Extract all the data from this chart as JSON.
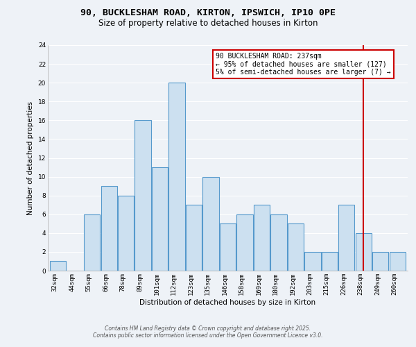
{
  "title_line1": "90, BUCKLESHAM ROAD, KIRTON, IPSWICH, IP10 0PE",
  "title_line2": "Size of property relative to detached houses in Kirton",
  "xlabel": "Distribution of detached houses by size in Kirton",
  "ylabel": "Number of detached properties",
  "bar_labels": [
    "32sqm",
    "44sqm",
    "55sqm",
    "66sqm",
    "78sqm",
    "89sqm",
    "101sqm",
    "112sqm",
    "123sqm",
    "135sqm",
    "146sqm",
    "158sqm",
    "169sqm",
    "180sqm",
    "192sqm",
    "203sqm",
    "215sqm",
    "226sqm",
    "238sqm",
    "249sqm",
    "260sqm"
  ],
  "bar_values": [
    1,
    0,
    6,
    9,
    8,
    16,
    11,
    20,
    7,
    10,
    5,
    6,
    7,
    6,
    5,
    2,
    2,
    7,
    4,
    2,
    2
  ],
  "bar_color": "#cce0f0",
  "bar_edgecolor": "#5599cc",
  "ylim": [
    0,
    24
  ],
  "yticks": [
    0,
    2,
    4,
    6,
    8,
    10,
    12,
    14,
    16,
    18,
    20,
    22,
    24
  ],
  "vline_x_index": 18,
  "annotation_box_text": "90 BUCKLESHAM ROAD: 237sqm\n← 95% of detached houses are smaller (127)\n5% of semi-detached houses are larger (7) →",
  "annotation_box_color": "#ffffff",
  "annotation_box_edgecolor": "#cc0000",
  "vline_color": "#cc0000",
  "footer_line1": "Contains HM Land Registry data © Crown copyright and database right 2025.",
  "footer_line2": "Contains public sector information licensed under the Open Government Licence v3.0.",
  "background_color": "#eef2f7",
  "plot_background": "#eef2f7",
  "grid_color": "#ffffff",
  "title_fontsize": 9.5,
  "subtitle_fontsize": 8.5,
  "axis_label_fontsize": 7.5,
  "tick_fontsize": 6.5,
  "annotation_fontsize": 7,
  "footer_fontsize": 5.5
}
